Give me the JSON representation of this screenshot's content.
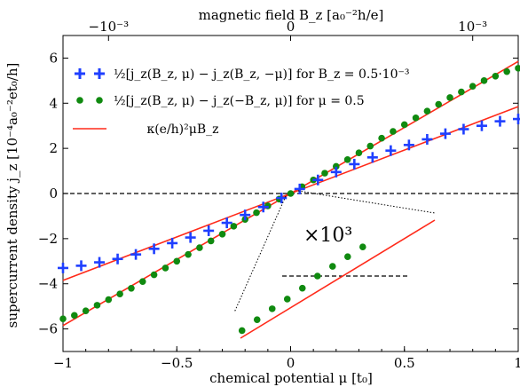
{
  "chart_data": {
    "type": "scatter",
    "xlabel": "chemical potential μ [t₀]",
    "ylabel": "supercurrent density j_z [10⁻⁴a₀⁻²et₀/h]",
    "top_xlabel": "magnetic field B_z [a₀⁻²h/e]",
    "xlim": [
      -1,
      1
    ],
    "ylim": [
      -7,
      7
    ],
    "x_ticks": [
      -1,
      -0.5,
      0,
      0.5,
      1
    ],
    "x_tick_labels": [
      "−1",
      "−0.5",
      "0",
      "0.5",
      "1"
    ],
    "y_ticks": [
      -6,
      -4,
      -2,
      0,
      2,
      4,
      6
    ],
    "y_tick_labels": [
      "−6",
      "−4",
      "−2",
      "0",
      "2",
      "4",
      "6"
    ],
    "top_ticks": [
      -0.8,
      0,
      0.8
    ],
    "top_tick_labels": [
      "−10⁻³",
      "0",
      "10⁻³"
    ],
    "grid": false,
    "legend_position": "top-left",
    "zero_line": true,
    "inset_label": "×10³",
    "series": [
      {
        "name": "½[j_z(B_z, μ) − j_z(B_z, −μ)]  for  B_z = 0.5·10⁻³",
        "marker": "plus",
        "color": "#1f3fff",
        "x": [
          -1.0,
          -0.92,
          -0.84,
          -0.76,
          -0.68,
          -0.6,
          -0.52,
          -0.44,
          -0.36,
          -0.28,
          -0.2,
          -0.12,
          -0.04,
          0.04,
          0.12,
          0.2,
          0.28,
          0.36,
          0.44,
          0.52,
          0.6,
          0.68,
          0.76,
          0.84,
          0.92,
          1.0
        ],
        "y": [
          -3.3,
          -3.2,
          -3.05,
          -2.9,
          -2.7,
          -2.45,
          -2.2,
          -1.95,
          -1.65,
          -1.3,
          -0.95,
          -0.6,
          -0.2,
          0.2,
          0.6,
          0.95,
          1.3,
          1.6,
          1.9,
          2.15,
          2.4,
          2.65,
          2.85,
          3.0,
          3.2,
          3.3
        ]
      },
      {
        "name": "½[j_z(B_z, μ) − j_z(−B_z, μ)]  for  μ = 0.5",
        "marker": "circle",
        "color": "#108a10",
        "x": [
          -1.0,
          -0.95,
          -0.9,
          -0.85,
          -0.8,
          -0.75,
          -0.7,
          -0.65,
          -0.6,
          -0.55,
          -0.5,
          -0.45,
          -0.4,
          -0.35,
          -0.3,
          -0.25,
          -0.2,
          -0.15,
          -0.1,
          -0.05,
          0.0,
          0.05,
          0.1,
          0.15,
          0.2,
          0.25,
          0.3,
          0.35,
          0.4,
          0.45,
          0.5,
          0.55,
          0.6,
          0.65,
          0.7,
          0.75,
          0.8,
          0.85,
          0.9,
          0.95,
          1.0
        ],
        "y": [
          -5.55,
          -5.4,
          -5.2,
          -4.95,
          -4.7,
          -4.45,
          -4.2,
          -3.9,
          -3.6,
          -3.3,
          -3.0,
          -2.7,
          -2.4,
          -2.1,
          -1.8,
          -1.45,
          -1.15,
          -0.85,
          -0.55,
          -0.25,
          0.0,
          0.3,
          0.6,
          0.9,
          1.2,
          1.5,
          1.8,
          2.1,
          2.45,
          2.75,
          3.05,
          3.35,
          3.65,
          3.95,
          4.25,
          4.5,
          4.75,
          5.0,
          5.2,
          5.4,
          5.55
        ]
      },
      {
        "name": "κ(e/h)²μB_z",
        "marker": "line",
        "color": "#ff2a1a",
        "lines": [
          {
            "x": [
              -1,
              1
            ],
            "y": [
              -3.85,
              3.85
            ]
          },
          {
            "x": [
              -1,
              1
            ],
            "y": [
              -5.85,
              5.85
            ]
          }
        ]
      }
    ],
    "inset": {
      "x": [
        -0.21,
        -0.14,
        -0.07,
        0.0,
        0.07,
        0.14,
        0.21,
        0.28,
        0.35
      ],
      "y": [
        -6.05,
        -5.6,
        -5.15,
        -4.75,
        -4.3,
        -3.8,
        -3.4,
        -3.0,
        -2.6
      ]
    }
  }
}
